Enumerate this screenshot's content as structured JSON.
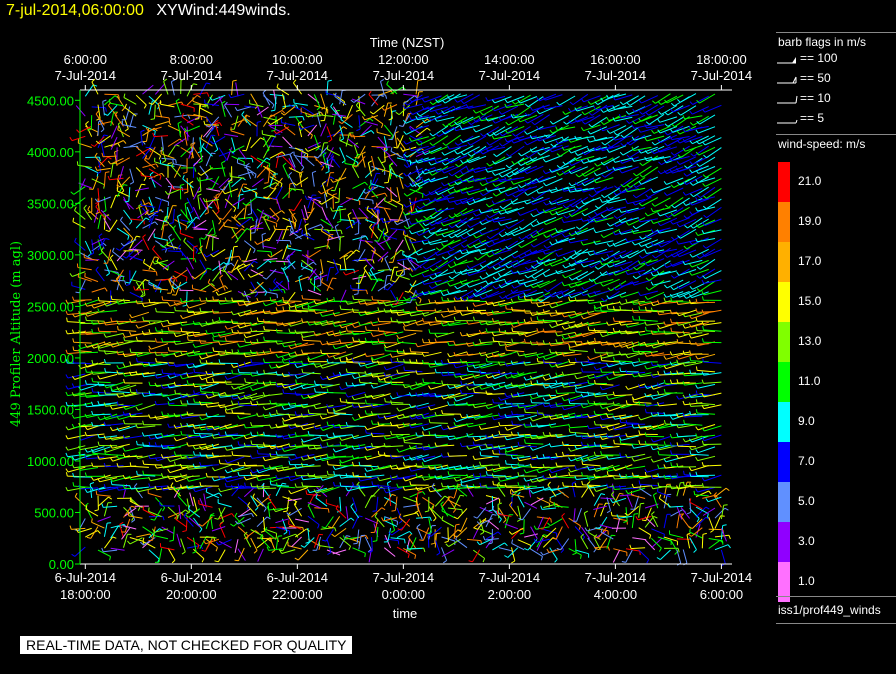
{
  "header": {
    "time": "7-jul-2014,06:00:00",
    "name": "XYWind:449winds."
  },
  "chart_data": {
    "type": "wind-barb",
    "top_axis": {
      "title": "Time (NZST)",
      "ticks": [
        {
          "time": "6:00:00",
          "date": "7-Jul-2014"
        },
        {
          "time": "8:00:00",
          "date": "7-Jul-2014"
        },
        {
          "time": "10:00:00",
          "date": "7-Jul-2014"
        },
        {
          "time": "12:00:00",
          "date": "7-Jul-2014"
        },
        {
          "time": "14:00:00",
          "date": "7-Jul-2014"
        },
        {
          "time": "16:00:00",
          "date": "7-Jul-2014"
        },
        {
          "time": "18:00:00",
          "date": "7-Jul-2014"
        }
      ]
    },
    "bottom_axis": {
      "title": "time",
      "ticks": [
        {
          "date": "6-Jul-2014",
          "time": "18:00:00"
        },
        {
          "date": "6-Jul-2014",
          "time": "20:00:00"
        },
        {
          "date": "6-Jul-2014",
          "time": "22:00:00"
        },
        {
          "date": "7-Jul-2014",
          "time": "0:00:00"
        },
        {
          "date": "7-Jul-2014",
          "time": "2:00:00"
        },
        {
          "date": "7-Jul-2014",
          "time": "4:00:00"
        },
        {
          "date": "7-Jul-2014",
          "time": "6:00:00"
        }
      ]
    },
    "y_axis": {
      "title": "449 Profiler Altitude (m agl)",
      "ticks": [
        "0.00",
        "500.00",
        "1000.00",
        "1500.00",
        "2000.00",
        "2500.00",
        "3000.00",
        "3500.00",
        "4000.00",
        "4500.00"
      ],
      "range": [
        0,
        4600
      ]
    },
    "x_range_hours": [
      -0.1,
      12.2
    ],
    "barb_legend": {
      "title": "barb flags in m/s",
      "items": [
        {
          "label": "== 100",
          "kind": "flag"
        },
        {
          "label": "== 50",
          "kind": "pennant"
        },
        {
          "label": "== 10",
          "kind": "full"
        },
        {
          "label": "== 5",
          "kind": "half"
        }
      ]
    },
    "speed_legend": {
      "title": "wind-speed: m/s",
      "levels": [
        {
          "label": "21.0",
          "color": "#ff0000"
        },
        {
          "label": "19.0",
          "color": "#ff8000"
        },
        {
          "label": "17.0",
          "color": "#ffb000"
        },
        {
          "label": "15.0",
          "color": "#ffff00"
        },
        {
          "label": "13.0",
          "color": "#80ff00"
        },
        {
          "label": "11.0",
          "color": "#00ff00"
        },
        {
          "label": "9.0",
          "color": "#00ffff"
        },
        {
          "label": "7.0",
          "color": "#0000ff"
        },
        {
          "label": "5.0",
          "color": "#6090ff"
        },
        {
          "label": "3.0",
          "color": "#9000ff"
        },
        {
          "label": "1.0",
          "color": "#ff70ff"
        }
      ]
    },
    "source": "iss1/prof449_winds",
    "quality_note": "REAL-TIME DATA, NOT CHECKED FOR QUALITY"
  }
}
